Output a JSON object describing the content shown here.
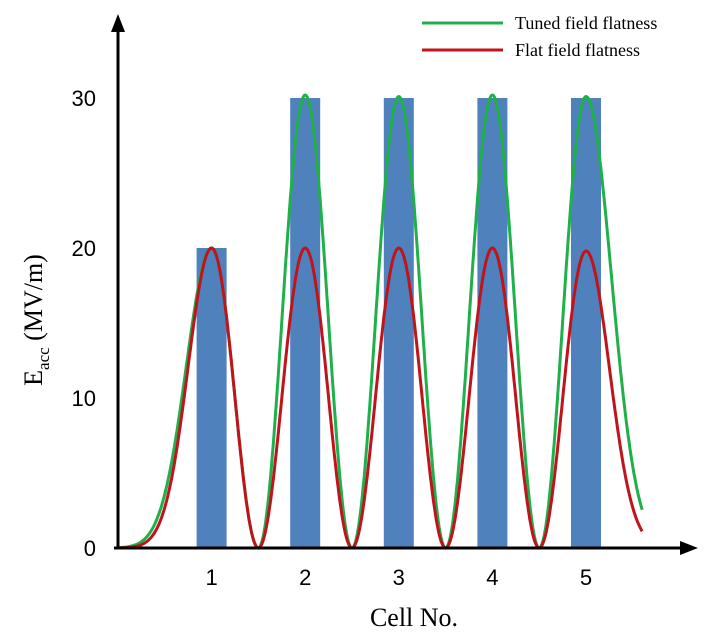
{
  "chart_data": {
    "type": "bar",
    "title": "",
    "xlabel": "Cell No.",
    "ylabel_main": "E",
    "ylabel_sub": "acc",
    "ylabel_unit": " (MV/m)",
    "categories": [
      "1",
      "2",
      "3",
      "4",
      "5"
    ],
    "bar_values": [
      20,
      30,
      30,
      30,
      30
    ],
    "bar_color": "#4f81bd",
    "yticks": [
      "0",
      "10",
      "20",
      "30"
    ],
    "ylim": [
      0,
      35
    ],
    "xlim": [
      0,
      5.95
    ],
    "grid": false,
    "legend_position": "top-right",
    "series": [
      {
        "name": "Tuned field flatness",
        "color": "#1fb04b",
        "peaks": [
          20,
          30.2,
          30.1,
          30.2,
          30.1
        ]
      },
      {
        "name": "Flat field flatness",
        "color": "#c0141c",
        "peaks": [
          20,
          20,
          20,
          20,
          19.8
        ]
      }
    ]
  }
}
